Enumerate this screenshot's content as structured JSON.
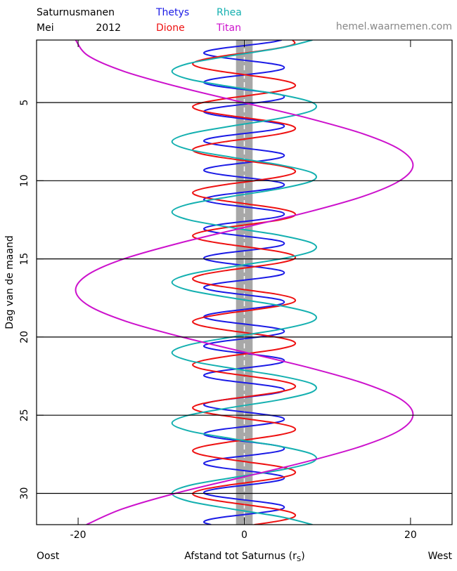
{
  "chart_data": {
    "type": "line",
    "title": "Saturnusmanen",
    "month": "Mei",
    "year": "2012",
    "source": "hemel.waarnemen.com",
    "y_label": "Dag van de maand",
    "x_label": [
      "Afstand tot Saturnus (r",
      "S",
      ")"
    ],
    "x_left_label": "Oost",
    "x_right_label": "West",
    "xlim": [
      -25,
      25
    ],
    "xticks": [
      -20,
      0,
      20
    ],
    "ylim": [
      32,
      1
    ],
    "yticks": [
      5,
      10,
      15,
      20,
      25,
      30
    ],
    "grid": true,
    "saturn_band": [
      -1,
      1
    ],
    "saturn_color": "#a8a8a8",
    "series": [
      {
        "name": "Thetys",
        "color": "#1a1ae6",
        "y": [
          1,
          1.125,
          1.25,
          1.375,
          1.5,
          1.625,
          1.75,
          1.875,
          2,
          2.125,
          2.25,
          2.375,
          2.5,
          2.625,
          2.75,
          2.875,
          3,
          3.125,
          3.25,
          3.375,
          3.5,
          3.625,
          3.75,
          3.875,
          4,
          4.125,
          4.25,
          4.375,
          4.5,
          4.625,
          4.75,
          4.875,
          5,
          5.125,
          5.25,
          5.375,
          5.5,
          5.625,
          5.75,
          5.875,
          6,
          6.125,
          6.25,
          6.375,
          6.5,
          6.625,
          6.75,
          6.875,
          7,
          7.125,
          7.25,
          7.375,
          7.5,
          7.625,
          7.75,
          7.875,
          8,
          8.125,
          8.25,
          8.375,
          8.5,
          8.625,
          8.75,
          8.875,
          9,
          9.125,
          9.25,
          9.375,
          9.5,
          9.625,
          9.75,
          9.875,
          10,
          10.125,
          10.25,
          10.375,
          10.5,
          10.625,
          10.75,
          10.875,
          11,
          11.125,
          11.25,
          11.375,
          11.5,
          11.625,
          11.75,
          11.875,
          12,
          12.125,
          12.25,
          12.375,
          12.5,
          12.625,
          12.75,
          12.875,
          13,
          13.125,
          13.25,
          13.375,
          13.5,
          13.625,
          13.75,
          13.875,
          14,
          14.125,
          14.25,
          14.375,
          14.5,
          14.625,
          14.75,
          14.875,
          15,
          15.125,
          15.25,
          15.375,
          15.5,
          15.625,
          15.75,
          15.875,
          16,
          16.125,
          16.25,
          16.375,
          16.5,
          16.625,
          16.75,
          16.875,
          17,
          17.125,
          17.25,
          17.375,
          17.5,
          17.625,
          17.75,
          17.875,
          18,
          18.125,
          18.25,
          18.375,
          18.5,
          18.625,
          18.75,
          18.875,
          19,
          19.125,
          19.25,
          19.375,
          19.5,
          19.625,
          19.75,
          19.875,
          20,
          20.125,
          20.25,
          20.375,
          20.5,
          20.625,
          20.75,
          20.875,
          21,
          21.125,
          21.25,
          21.375,
          21.5,
          21.625,
          21.75,
          21.875,
          22,
          22.125,
          22.25,
          22.375,
          22.5,
          22.625,
          22.75,
          22.875,
          23,
          23.125,
          23.25,
          23.375,
          23.5,
          23.625,
          23.75,
          23.875,
          24,
          24.125,
          24.25,
          24.375,
          24.5,
          24.625,
          24.75,
          24.875,
          25,
          25.125,
          25.25,
          25.375,
          25.5,
          25.625,
          25.75,
          25.875,
          26,
          26.125,
          26.25,
          26.375,
          26.5,
          26.625,
          26.75,
          26.875,
          27,
          27.125,
          27.25,
          27.375,
          27.5,
          27.625,
          27.75,
          27.875,
          28,
          28.125,
          28.25,
          28.375,
          28.5,
          28.625,
          28.75,
          28.875,
          29,
          29.125,
          29.25,
          29.375,
          29.5,
          29.625,
          29.75,
          29.875,
          30,
          30.125,
          30.25,
          30.375,
          30.5,
          30.625,
          30.75,
          30.875,
          31,
          31.125,
          31.25,
          31.375,
          31.5,
          31.625,
          31.75,
          31.875,
          32
        ],
        "x": [
          4.5,
          3.4,
          1.7,
          -0.3,
          -2.3,
          -3.8,
          -4.7,
          -4.8,
          -4.0,
          -2.6,
          -0.7,
          1.3,
          3.1,
          4.4,
          4.8,
          4.5,
          3.4,
          1.7,
          -0.3,
          -2.3,
          -3.8,
          -4.7,
          -4.8,
          -4.0,
          -2.6,
          -0.7,
          1.3,
          3.1,
          4.4,
          4.8,
          4.5,
          3.4,
          1.7,
          -0.3,
          -2.3,
          -3.8,
          -4.7,
          -4.8,
          -4.0,
          -2.6,
          -0.7,
          1.3,
          3.1,
          4.4,
          4.8,
          4.5,
          3.4,
          1.7,
          -0.3,
          -2.3,
          -3.8,
          -4.7,
          -4.8,
          -4.0,
          -2.6,
          -0.7,
          1.3,
          3.1,
          4.4,
          4.8,
          4.5,
          3.4,
          1.7,
          -0.3,
          -2.3,
          -3.8,
          -4.7,
          -4.8,
          -4.0,
          -2.6,
          -0.7,
          1.3,
          3.1,
          4.4,
          4.8,
          4.5,
          3.4,
          1.7,
          -0.3,
          -2.3,
          -3.8,
          -4.7,
          -4.8,
          -4.0,
          -2.6,
          -0.7,
          1.3,
          3.1,
          4.4,
          4.8,
          4.5,
          3.4,
          1.7,
          -0.3,
          -2.3,
          -3.8,
          -4.7,
          -4.8,
          -4.0,
          -2.6,
          -0.7,
          1.3,
          3.1,
          4.4,
          4.8,
          4.5,
          3.4,
          1.7,
          -0.3,
          -2.3,
          -3.8,
          -4.7,
          -4.8,
          -4.0,
          -2.6,
          -0.7,
          1.3,
          3.1,
          4.4,
          4.8,
          4.5,
          3.4,
          1.7,
          -0.3,
          -2.3,
          -3.8,
          -4.7,
          -4.8,
          -4.0,
          -2.6,
          -0.7,
          1.3,
          3.1,
          4.4,
          4.8,
          4.5,
          3.4,
          1.7,
          -0.3,
          -2.3,
          -3.8,
          -4.7,
          -4.8,
          -4.0,
          -2.6,
          -0.7,
          1.3,
          3.1,
          4.4,
          4.8,
          4.5,
          3.4,
          1.7,
          -0.3,
          -2.3,
          -3.8,
          -4.7,
          -4.8,
          -4.0,
          -2.6,
          -0.7,
          1.3,
          3.1,
          4.4,
          4.8,
          4.5,
          3.4,
          1.7,
          -0.3,
          -2.3,
          -3.8,
          -4.7,
          -4.8,
          -4.0,
          -2.6,
          -0.7,
          1.3,
          3.1,
          4.4,
          4.8,
          4.5,
          3.4,
          1.7,
          -0.3,
          -2.3,
          -3.8,
          -4.7,
          -4.8,
          -4.0,
          -2.6,
          -0.7,
          1.3,
          3.1,
          4.4,
          4.8,
          4.5,
          3.4,
          1.7,
          -0.3,
          -2.3,
          -3.8,
          -4.7,
          -4.8,
          -4.0,
          -2.6,
          -0.7,
          1.3,
          3.1,
          4.4,
          4.8,
          4.5,
          3.4,
          1.7,
          -0.3,
          -2.3,
          -3.8,
          -4.7,
          -4.8,
          -4.0,
          -2.6,
          -0.7,
          1.3,
          3.1,
          4.4,
          4.8,
          4.5,
          3.4,
          1.7,
          -0.3,
          -2.3,
          -3.8,
          -4.7,
          -4.8,
          -4.0,
          -2.6,
          -0.7,
          1.3,
          3.1,
          4.4,
          4.8,
          4.5,
          3.4,
          1.7,
          -0.3,
          -2.3,
          -3.8,
          -4.7,
          -4.8,
          -4.0
        ]
      },
      {
        "name": "Dione",
        "color": "#ee1111",
        "y": [
          1,
          1.25,
          1.5,
          1.75,
          2,
          2.25,
          2.5,
          2.75,
          3,
          3.25,
          3.5,
          3.75,
          4,
          4.25,
          4.5,
          4.75,
          5,
          5.25,
          5.5,
          5.75,
          6,
          6.25,
          6.5,
          6.75,
          7,
          7.25,
          7.5,
          7.75,
          8,
          8.25,
          8.5,
          8.75,
          9,
          9.25,
          9.5,
          9.75,
          10,
          10.25,
          10.5,
          10.75,
          11,
          11.25,
          11.5,
          11.75,
          12,
          12.25,
          12.5,
          12.75,
          13,
          13.25,
          13.5,
          13.75,
          14,
          14.25,
          14.5,
          14.75,
          15,
          15.25,
          15.5,
          15.75,
          16,
          16.25,
          16.5,
          16.75,
          17,
          17.25,
          17.5,
          17.75,
          18,
          18.25,
          18.5,
          18.75,
          19,
          19.25,
          19.5,
          19.75,
          20,
          20.25,
          20.5,
          20.75,
          21,
          21.25,
          21.5,
          21.75,
          22,
          22.25,
          22.5,
          22.75,
          23,
          23.25,
          23.5,
          23.75,
          24,
          24.25,
          24.5,
          24.75,
          25,
          25.25,
          25.5,
          25.75,
          26,
          26.25,
          26.5,
          26.75,
          27,
          27.25,
          27.5,
          27.75,
          28,
          28.25,
          28.5,
          28.75,
          29,
          29.25,
          29.5,
          29.75,
          30,
          30.25,
          30.5,
          30.75,
          31,
          31.25,
          31.5,
          31.75,
          32
        ],
        "x": [
          5.8,
          6.0,
          4.3,
          1.2,
          -2.3,
          -5.0,
          -6.2,
          -5.4,
          -2.9,
          0.5,
          3.8,
          5.8,
          6.0,
          4.3,
          1.2,
          -2.3,
          -5.0,
          -6.2,
          -5.4,
          -2.9,
          0.5,
          3.8,
          5.8,
          6.0,
          4.3,
          1.2,
          -2.3,
          -5.0,
          -6.2,
          -5.4,
          -2.9,
          0.5,
          3.8,
          5.8,
          6.0,
          4.3,
          1.2,
          -2.3,
          -5.0,
          -6.2,
          -5.4,
          -2.9,
          0.5,
          3.8,
          5.8,
          6.0,
          4.3,
          1.2,
          -2.3,
          -5.0,
          -6.2,
          -5.4,
          -2.9,
          0.5,
          3.8,
          5.8,
          6.0,
          4.3,
          1.2,
          -2.3,
          -5.0,
          -6.2,
          -5.4,
          -2.9,
          0.5,
          3.8,
          5.8,
          6.0,
          4.3,
          1.2,
          -2.3,
          -5.0,
          -6.2,
          -5.4,
          -2.9,
          0.5,
          3.8,
          5.8,
          6.0,
          4.3,
          1.2,
          -2.3,
          -5.0,
          -6.2,
          -5.4,
          -2.9,
          0.5,
          3.8,
          5.8,
          6.0,
          4.3,
          1.2,
          -2.3,
          -5.0,
          -6.2,
          -5.4,
          -2.9,
          0.5,
          3.8,
          5.8,
          6.0,
          4.3,
          1.2,
          -2.3,
          -5.0,
          -6.2,
          -5.4,
          -2.9,
          0.5,
          3.8,
          5.8,
          6.0,
          4.3,
          1.2,
          -2.3,
          -5.0,
          -6.2,
          -5.4,
          -2.9,
          0.5,
          3.8,
          5.8,
          6.0,
          4.3,
          1.2
        ]
      },
      {
        "name": "Rhea",
        "color": "#14b0b0",
        "y": [
          1,
          1.5,
          2,
          2.5,
          3,
          3.5,
          4,
          4.5,
          5,
          5.5,
          6,
          6.5,
          7,
          7.5,
          8,
          8.5,
          9,
          9.5,
          10,
          10.5,
          11,
          11.5,
          12,
          12.5,
          13,
          13.5,
          14,
          14.5,
          15,
          15.5,
          16,
          16.5,
          17,
          17.5,
          18,
          18.5,
          19,
          19.5,
          20,
          20.5,
          21,
          21.5,
          22,
          22.5,
          23,
          23.5,
          24,
          24.5,
          25,
          25.5,
          26,
          26.5,
          27,
          27.5,
          28,
          28.5,
          29,
          29.5,
          30,
          30.5,
          31,
          31.5,
          32
        ],
        "x": [
          8.2,
          4.4,
          -1.5,
          -6.7,
          -8.7,
          -6.7,
          -1.5,
          4.4,
          8.2,
          8.2,
          4.4,
          -1.5,
          -6.7,
          -8.7,
          -6.7,
          -1.5,
          4.4,
          8.2,
          8.2,
          4.4,
          -1.5,
          -6.7,
          -8.7,
          -6.7,
          -1.5,
          4.4,
          8.2,
          8.2,
          4.4,
          -1.5,
          -6.7,
          -8.7,
          -6.7,
          -1.5,
          4.4,
          8.2,
          8.2,
          4.4,
          -1.5,
          -6.7,
          -8.7,
          -6.7,
          -1.5,
          4.4,
          8.2,
          8.2,
          4.4,
          -1.5,
          -6.7,
          -8.7,
          -6.7,
          -1.5,
          4.4,
          8.2,
          8.2,
          4.4,
          -1.5,
          -6.7,
          -8.7,
          -6.7,
          -1.5,
          4.4,
          8.2
        ]
      },
      {
        "name": "Titan",
        "color": "#cc11cc",
        "y": [
          1,
          2,
          3,
          4,
          5,
          6,
          7,
          8,
          9,
          10,
          11,
          12,
          13,
          14,
          15,
          16,
          17,
          18,
          19,
          20,
          21,
          22,
          23,
          24,
          25,
          26,
          27,
          28,
          29,
          30,
          31,
          32
        ],
        "x": [
          -20.3,
          -18.8,
          -14.5,
          -7.9,
          -0.1,
          7.7,
          14.3,
          18.7,
          20.3,
          18.7,
          14.3,
          7.7,
          -0.1,
          -7.9,
          -14.5,
          -18.8,
          -20.3,
          -18.7,
          -14.2,
          -7.5,
          0.3,
          8.1,
          14.6,
          18.9,
          20.3,
          18.6,
          14.0,
          7.3,
          -0.5,
          -8.3,
          -14.7,
          -19.0
        ]
      }
    ]
  }
}
